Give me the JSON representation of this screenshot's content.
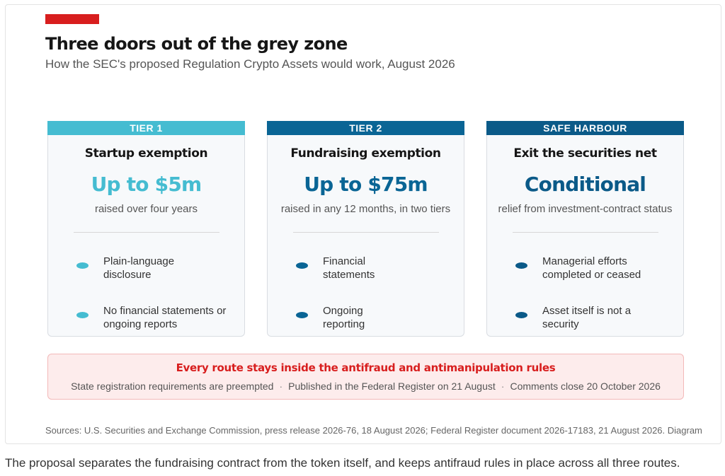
{
  "graphic": {
    "headline": "Three doors out of the grey zone",
    "subtitle": "How the SEC's proposed Regulation Crypto Assets would work, August 2026",
    "colors": {
      "accent": "#d81e1e",
      "tier1": "#45bcd1",
      "tier2": "#0a6595",
      "safe_harbour": "#0b5a88"
    },
    "tiers": [
      {
        "label": "TIER 1",
        "name": "Startup exemption",
        "amount": "Up to $5m",
        "note": "raised over four years",
        "points": [
          "Plain-language disclosure",
          "No financial statements or ongoing reports"
        ]
      },
      {
        "label": "TIER 2",
        "name": "Fundraising exemption",
        "amount": "Up to $75m",
        "note": "raised in any 12 months, in two tiers",
        "points": [
          "Financial statements",
          "Ongoing reporting"
        ]
      },
      {
        "label": "SAFE HARBOUR",
        "name": "Exit the securities net",
        "amount": "Conditional",
        "note": "relief from investment-contract status",
        "points": [
          "Managerial efforts completed or ceased",
          "Asset itself is not a security"
        ]
      }
    ],
    "callout": {
      "title": "Every route stays inside the antifraud and antimanipulation rules",
      "items": [
        "State registration requirements are preempted",
        "Published in the Federal Register on 21 August",
        "Comments close 20 October 2026"
      ],
      "separator": "·"
    },
    "sources": "Sources: U.S. Securities and Exchange Commission, press release 2026-76, 18 August 2026; Federal Register document 2026-17183, 21 August 2026. Diagram"
  },
  "caption": "The proposal separates the fundraising contract from the token itself, and keeps antifraud rules in place across all three routes."
}
